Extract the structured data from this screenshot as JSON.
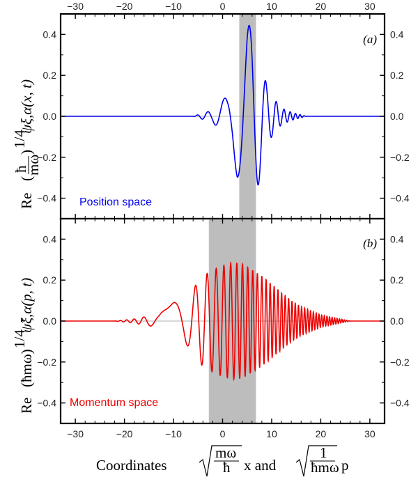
{
  "figure": {
    "xlabel": "Coordinates √(mω/ħ) x and √(1/(ħmω)) p",
    "xlabel_prefix": "Coordinates",
    "xlabel_and": "x and",
    "xlabel_p": "p",
    "x_ticks": [
      "−30",
      "−20",
      "−10",
      "0",
      "10",
      "20",
      "30"
    ],
    "y_ticks": [
      "0.4",
      "0.2",
      "0.0",
      "−0.2",
      "−0.4"
    ]
  },
  "chart_data": [
    {
      "type": "line",
      "panel": "(a)",
      "ylabel": "Re (ħ/mω)^1/4 ψξ,α(x, t)",
      "ylabel_re": "Re",
      "ylabel_power": "1/4",
      "ylabel_func": "ψξ,α(x, t)",
      "annotation": "Position space",
      "color": "#0000ee",
      "xlim": [
        -33,
        33
      ],
      "ylim": [
        -0.5,
        0.5
      ],
      "x_ticks": [
        -30,
        -20,
        -10,
        0,
        10,
        20,
        30
      ],
      "y_ticks": [
        0.4,
        0.2,
        0.0,
        -0.2,
        -0.4
      ],
      "shaded_region": [
        3.4,
        6.8
      ],
      "series": [
        {
          "wave": "chirped oscillation",
          "center": 5.4,
          "envelope_points": [
            [
              -6,
              0.0
            ],
            [
              -2,
              0.03
            ],
            [
              0,
              0.08
            ],
            [
              1,
              0.1
            ],
            [
              2,
              0.17
            ],
            [
              3,
              0.3
            ],
            [
              4,
              0.36
            ],
            [
              5,
              0.44
            ],
            [
              6,
              0.45
            ],
            [
              7,
              0.37
            ],
            [
              8,
              0.25
            ],
            [
              9,
              0.15
            ],
            [
              10,
              0.1
            ],
            [
              11,
              0.07
            ],
            [
              12,
              0.04
            ],
            [
              14,
              0.02
            ],
            [
              17,
              0.0
            ]
          ],
          "peak_max": [
            5.8,
            0.44
          ],
          "peak_min": [
            6.5,
            -0.42
          ]
        }
      ]
    },
    {
      "type": "line",
      "panel": "(b)",
      "ylabel": "Re (ħmω)^1/4 ψ̃ξ,α(p, t)",
      "ylabel_re": "Re",
      "ylabel_power": "1/4",
      "ylabel_func": "ψ̃ξ,α(p, t)",
      "annotation": "Momentum space",
      "color": "#ee0000",
      "xlim": [
        -33,
        33
      ],
      "ylim": [
        -0.5,
        0.5
      ],
      "x_ticks": [
        -30,
        -20,
        -10,
        0,
        10,
        20,
        30
      ],
      "y_ticks": [
        0.4,
        0.2,
        0.0,
        -0.2,
        -0.4
      ],
      "shaded_region": [
        -2.8,
        6.8
      ],
      "series": [
        {
          "wave": "chirped oscillation",
          "envelope_points": [
            [
              -22,
              0.0
            ],
            [
              -20,
              0.005
            ],
            [
              -18,
              0.01
            ],
            [
              -16,
              0.02
            ],
            [
              -13,
              0.03
            ],
            [
              -10,
              0.09
            ],
            [
              -8,
              0.1
            ],
            [
              -6,
              0.15
            ],
            [
              -5,
              0.2
            ],
            [
              -4,
              0.22
            ],
            [
              -2,
              0.25
            ],
            [
              0,
              0.27
            ],
            [
              2,
              0.285
            ],
            [
              4,
              0.28
            ],
            [
              6,
              0.25
            ],
            [
              8,
              0.22
            ],
            [
              10,
              0.18
            ],
            [
              12,
              0.14
            ],
            [
              14,
              0.1
            ],
            [
              16,
              0.07
            ],
            [
              18,
              0.05
            ],
            [
              20,
              0.03
            ],
            [
              23,
              0.015
            ],
            [
              26,
              0.0
            ]
          ],
          "peak_max": [
            3,
            0.29
          ],
          "peak_min": [
            1,
            -0.29
          ]
        }
      ]
    }
  ]
}
